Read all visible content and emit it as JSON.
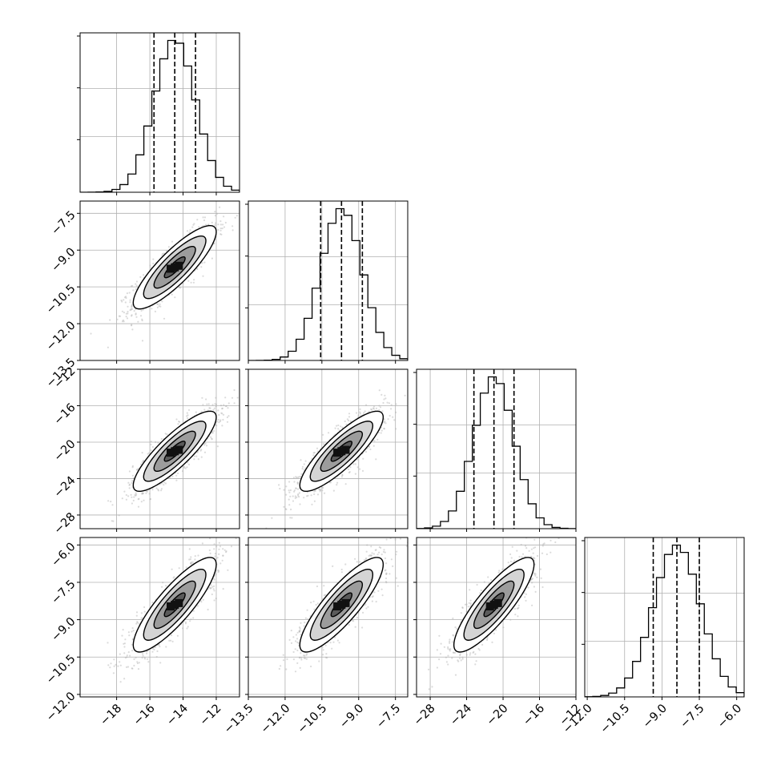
{
  "chart_data": {
    "type": "corner",
    "grid": true,
    "quantiles": [
      0.16,
      0.5,
      0.84
    ],
    "colors": {
      "hist": "#000000",
      "scatter": "#b0b0b0",
      "grid": "#b0b0b0",
      "contour": "#000000"
    },
    "params": [
      {
        "range": [
          -20.2,
          -10.6
        ],
        "ticks": [
          -18,
          -16,
          -14,
          -12
        ],
        "tick_labels": [
          "−18",
          "−16",
          "−14",
          "−12"
        ],
        "mean": -14.5,
        "sd": 1.25,
        "quantile_values": [
          -15.75,
          -14.5,
          -13.25
        ]
      },
      {
        "range": [
          -13.5,
          -7.0
        ],
        "ticks": [
          -13.5,
          -12.0,
          -10.5,
          -9.0,
          -7.5
        ],
        "tick_labels": [
          "−13.5",
          "−12.0",
          "−10.5",
          "−9.0",
          "−7.5"
        ],
        "mean": -9.7,
        "sd": 0.85,
        "quantile_values": [
          -10.55,
          -9.7,
          -8.85
        ]
      },
      {
        "range": [
          -29.5,
          -12.0
        ],
        "ticks": [
          -28,
          -24,
          -20,
          -16,
          -12
        ],
        "tick_labels": [
          "−28",
          "−24",
          "−20",
          "−16",
          "−12"
        ],
        "mean": -21.0,
        "sd": 2.2,
        "quantile_values": [
          -23.2,
          -21.0,
          -18.8
        ]
      },
      {
        "range": [
          -12.1,
          -5.7
        ],
        "ticks": [
          -12.0,
          -10.5,
          -9.0,
          -7.5,
          -6.0
        ],
        "tick_labels": [
          "−12.0",
          "−10.5",
          "−9.0",
          "−7.5",
          "−6.0"
        ],
        "mean": -8.4,
        "sd": 0.95,
        "quantile_values": [
          -9.35,
          -8.4,
          -7.5
        ]
      }
    ],
    "correlation": 0.85
  }
}
